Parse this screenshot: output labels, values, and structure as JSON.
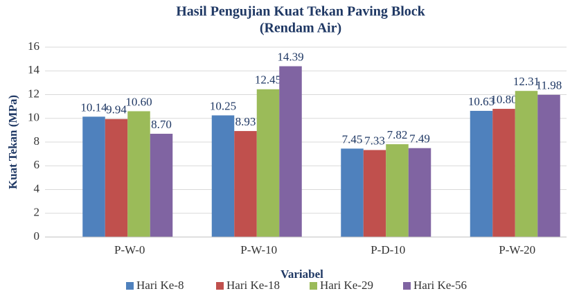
{
  "chart_data": {
    "type": "bar",
    "title": [
      "Hasil Pengujian Kuat Tekan Paving Block",
      "(Rendam Air)"
    ],
    "x_label": "Variabel",
    "y_label": "Kuat Tekan (MPa)",
    "categories": [
      "P-W-0",
      "P-W-10",
      "P-D-10",
      "P-W-20"
    ],
    "series": [
      {
        "name": "Hari Ke-8",
        "color": "#4f81bd",
        "values": [
          10.14,
          10.25,
          7.45,
          10.63
        ],
        "value_labels": [
          "10.14",
          "10.25",
          "7.45",
          "10.63"
        ]
      },
      {
        "name": "Hari Ke-18",
        "color": "#c0504d",
        "values": [
          9.94,
          8.93,
          7.33,
          10.8
        ],
        "value_labels": [
          "9.94",
          "8.93",
          "7.33",
          "10.80"
        ]
      },
      {
        "name": "Hari Ke-29",
        "color": "#9bbb59",
        "values": [
          10.6,
          12.45,
          7.82,
          12.31
        ],
        "value_labels": [
          "10.60",
          "12.45",
          "7.82",
          "12.31"
        ]
      },
      {
        "name": "Hari Ke-56",
        "color": "#8064a2",
        "values": [
          8.7,
          14.39,
          7.49,
          11.98
        ],
        "value_labels": [
          "8.70",
          "14.39",
          "7.49",
          "11.98"
        ]
      }
    ],
    "ylim": [
      0,
      16
    ],
    "yticks": [
      0,
      2,
      4,
      6,
      8,
      10,
      12,
      14,
      16
    ],
    "grid": true,
    "legend": "bottom"
  }
}
